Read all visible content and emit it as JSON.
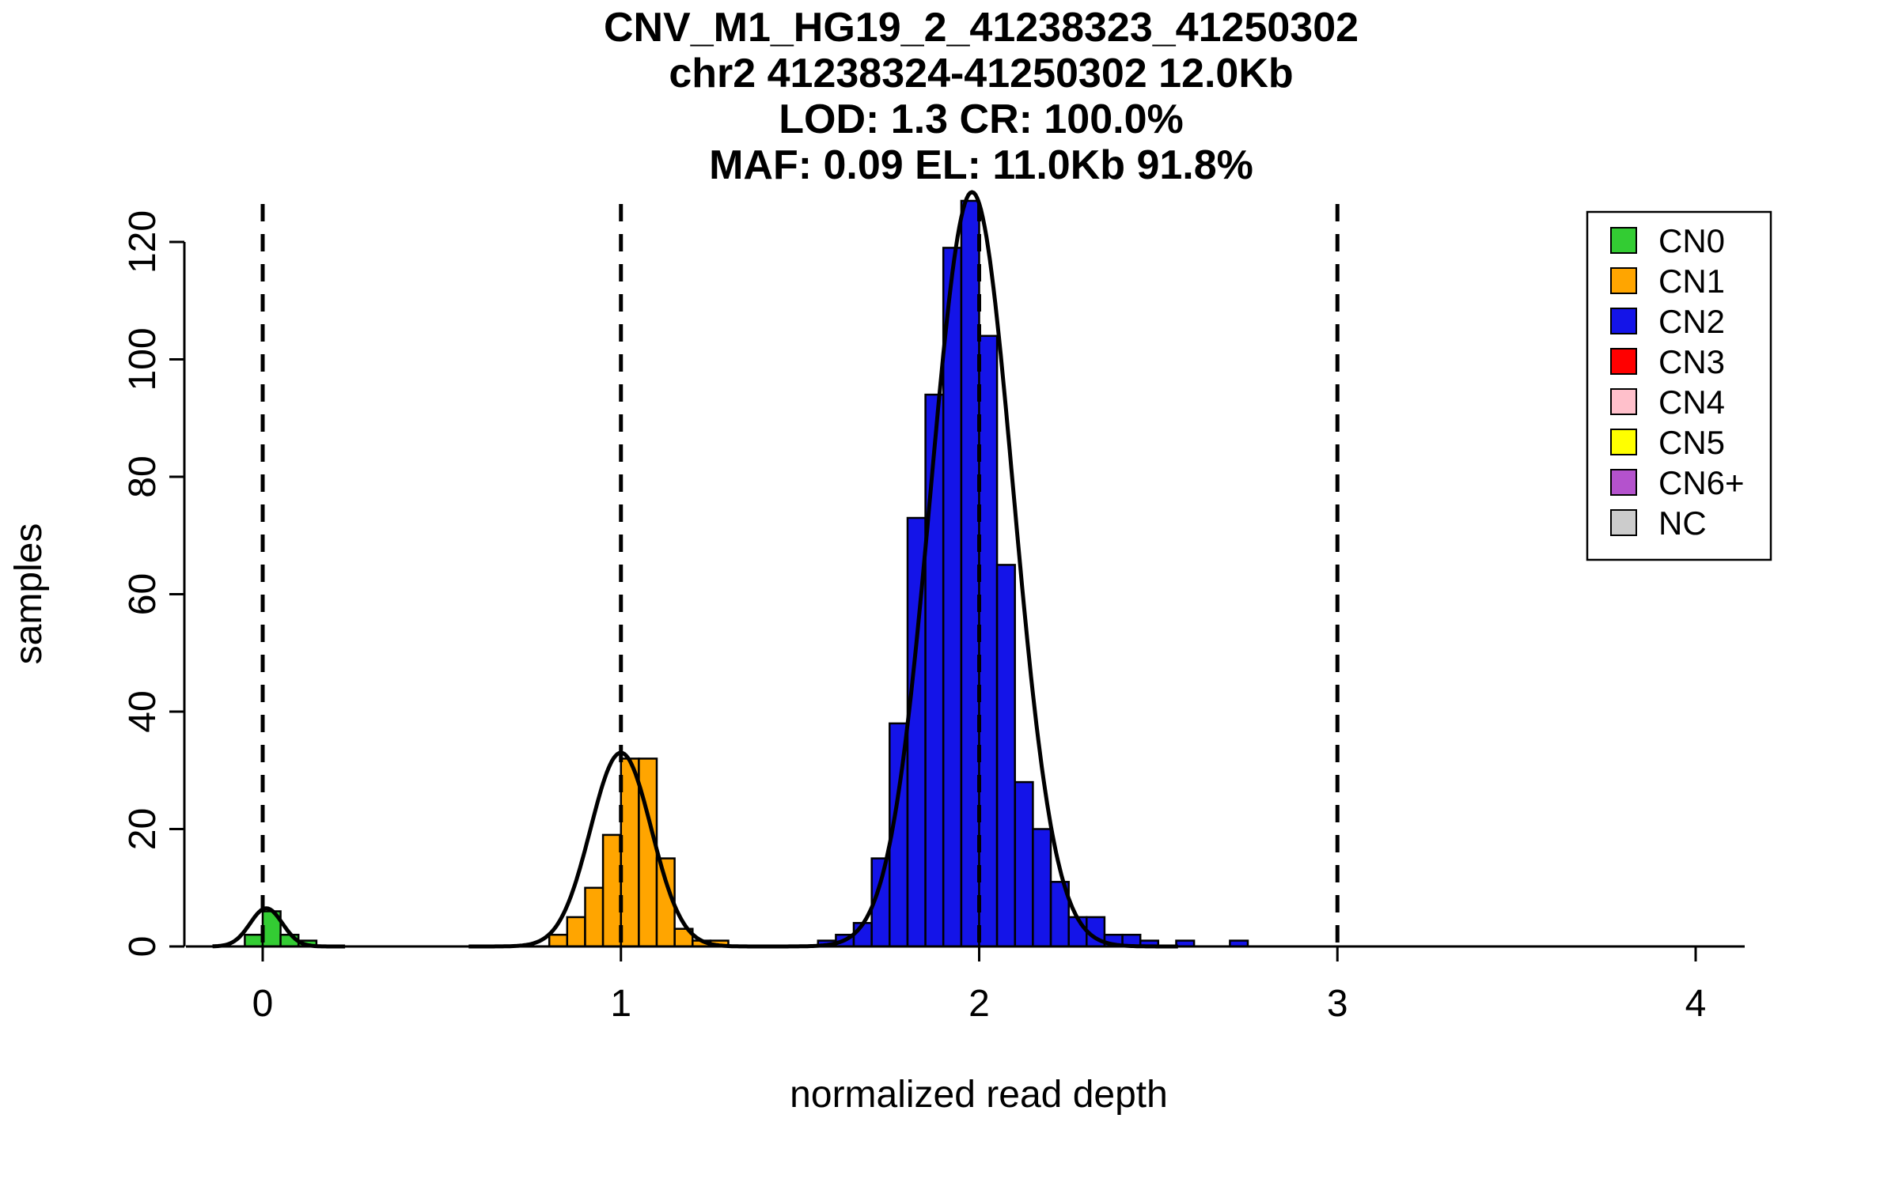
{
  "title": {
    "line1": "CNV_M1_HG19_2_41238323_41250302",
    "line2": "chr2 41238324-41250302 12.0Kb",
    "line3": "LOD: 1.3 CR: 100.0%",
    "line4": "MAF: 0.09 EL: 11.0Kb 91.8%"
  },
  "chart_data": {
    "type": "bar",
    "subtype": "histogram-with-gaussian-fit-curves",
    "xlabel": "normalized read depth",
    "ylabel": "samples",
    "xlim": [
      -0.15,
      4.15
    ],
    "ylim": [
      0,
      127
    ],
    "xticks": [
      0,
      1,
      2,
      3,
      4
    ],
    "yticks": [
      0,
      20,
      40,
      60,
      80,
      100,
      120
    ],
    "grid": false,
    "dashed_vlines": [
      0,
      1,
      2,
      3
    ],
    "bin_width": 0.05,
    "series": [
      {
        "name": "CN0",
        "color": "#33cc33",
        "bars": [
          {
            "x": -0.05,
            "h": 2
          },
          {
            "x": 0.0,
            "h": 6
          },
          {
            "x": 0.05,
            "h": 2
          },
          {
            "x": 0.1,
            "h": 1
          }
        ]
      },
      {
        "name": "CN1",
        "color": "#ffa500",
        "bars": [
          {
            "x": 0.8,
            "h": 2
          },
          {
            "x": 0.85,
            "h": 5
          },
          {
            "x": 0.9,
            "h": 10
          },
          {
            "x": 0.95,
            "h": 19
          },
          {
            "x": 1.0,
            "h": 32
          },
          {
            "x": 1.05,
            "h": 32
          },
          {
            "x": 1.1,
            "h": 15
          },
          {
            "x": 1.15,
            "h": 3
          },
          {
            "x": 1.2,
            "h": 1
          },
          {
            "x": 1.25,
            "h": 1
          }
        ]
      },
      {
        "name": "CN2",
        "color": "#1414e8",
        "bars": [
          {
            "x": 1.55,
            "h": 1
          },
          {
            "x": 1.6,
            "h": 2
          },
          {
            "x": 1.65,
            "h": 4
          },
          {
            "x": 1.7,
            "h": 15
          },
          {
            "x": 1.75,
            "h": 38
          },
          {
            "x": 1.8,
            "h": 73
          },
          {
            "x": 1.85,
            "h": 94
          },
          {
            "x": 1.9,
            "h": 119
          },
          {
            "x": 1.95,
            "h": 127
          },
          {
            "x": 2.0,
            "h": 104
          },
          {
            "x": 2.05,
            "h": 65
          },
          {
            "x": 2.1,
            "h": 28
          },
          {
            "x": 2.15,
            "h": 20
          },
          {
            "x": 2.2,
            "h": 11
          },
          {
            "x": 2.25,
            "h": 5
          },
          {
            "x": 2.3,
            "h": 5
          },
          {
            "x": 2.35,
            "h": 2
          },
          {
            "x": 2.4,
            "h": 2
          },
          {
            "x": 2.45,
            "h": 1
          },
          {
            "x": 2.55,
            "h": 1
          },
          {
            "x": 2.7,
            "h": 1
          }
        ]
      }
    ],
    "curves": [
      {
        "name": "CN0-fit",
        "mean": 0.01,
        "sd": 0.045,
        "amplitude": 6.5
      },
      {
        "name": "CN1-fit",
        "mean": 1.0,
        "sd": 0.085,
        "amplitude": 33
      },
      {
        "name": "CN2-fit",
        "mean": 1.98,
        "sd": 0.115,
        "amplitude": 128.5
      }
    ],
    "legend": {
      "position": "top-right",
      "entries": [
        {
          "label": "CN0",
          "color": "#33cc33"
        },
        {
          "label": "CN1",
          "color": "#ffa500"
        },
        {
          "label": "CN2",
          "color": "#1414e8"
        },
        {
          "label": "CN3",
          "color": "#ff0000"
        },
        {
          "label": "CN4",
          "color": "#ffc0cb"
        },
        {
          "label": "CN5",
          "color": "#ffff00"
        },
        {
          "label": "CN6+",
          "color": "#b452cd"
        },
        {
          "label": "NC",
          "color": "#cccccc"
        }
      ]
    },
    "colors": {
      "curve": "#000000",
      "axis": "#000000",
      "background": "#ffffff"
    }
  }
}
